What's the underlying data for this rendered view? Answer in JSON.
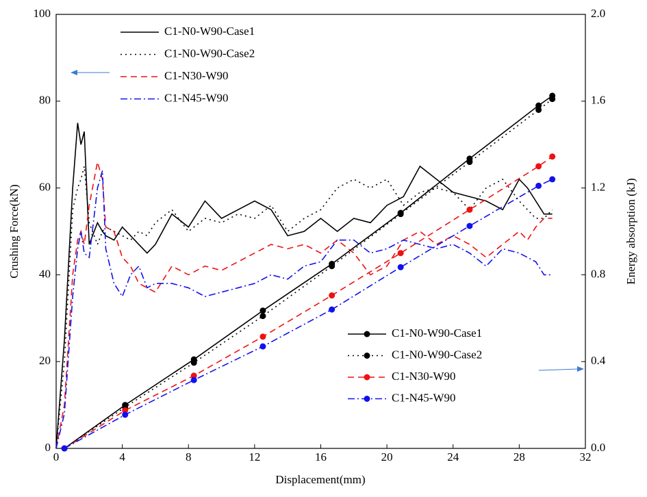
{
  "chart_data": {
    "type": "line",
    "xlabel": "Displacement(mm)",
    "ylabel": "Crushing Force(kN)",
    "y2label": "Energy absorption (kJ)",
    "xlim": [
      0,
      32
    ],
    "xticks": [
      0,
      4,
      8,
      12,
      16,
      20,
      24,
      28,
      32
    ],
    "ylim": [
      0,
      100
    ],
    "yticks": [
      0,
      20,
      40,
      60,
      80,
      100
    ],
    "y2lim": [
      0,
      2
    ],
    "y2ticks": [
      {
        "value": 0,
        "label": "0.0"
      },
      0.4,
      0.8,
      1.2,
      1.6,
      {
        "value": 2,
        "label": "2.0"
      }
    ],
    "series": [
      {
        "name": "C1-N0-W90-Case1",
        "color": "#000000",
        "dash": "solid",
        "x": [
          0,
          0.5,
          1,
          1.3,
          1.5,
          1.7,
          2,
          2.5,
          2.8,
          3,
          3.5,
          4,
          4.5,
          5,
          5.5,
          6,
          7,
          8,
          9,
          10,
          11,
          12,
          13,
          14,
          15,
          16,
          17,
          18,
          19,
          20,
          21,
          22,
          23,
          24,
          25,
          26,
          27,
          28,
          28.5,
          29,
          29.5,
          30
        ],
        "values": [
          0,
          25,
          60,
          75,
          70,
          73,
          47,
          52,
          50,
          49,
          48,
          51,
          49,
          47,
          45,
          47,
          54,
          51,
          57,
          53,
          55,
          57,
          55,
          49,
          50,
          53,
          50,
          53,
          52,
          56,
          58,
          65,
          62,
          59,
          58,
          57,
          55,
          62,
          60,
          57,
          54,
          54
        ]
      },
      {
        "name": "C1-N0-W90-Case2",
        "color": "#000000",
        "dash": "dotted",
        "x": [
          0,
          0.5,
          1,
          1.3,
          1.5,
          1.7,
          2,
          2.5,
          2.8,
          3,
          3.5,
          4,
          4.5,
          5,
          5.5,
          6,
          7,
          8,
          9,
          10,
          11,
          12,
          13,
          14,
          15,
          16,
          17,
          18,
          19,
          20,
          21,
          22,
          23,
          24,
          25,
          26,
          27,
          28,
          28.5,
          29,
          29.5,
          30
        ],
        "values": [
          0,
          20,
          55,
          60,
          62,
          65,
          52,
          47,
          50,
          51,
          50,
          49,
          48,
          50,
          49,
          52,
          55,
          50,
          53,
          52,
          54,
          53,
          56,
          50,
          53,
          55,
          60,
          62,
          60,
          62,
          56,
          59,
          60,
          59,
          55,
          60,
          62,
          57,
          55,
          53,
          53,
          55
        ]
      },
      {
        "name": "C1-N30-W90",
        "color": "#ee1111",
        "dash": "dashed",
        "x": [
          0,
          0.5,
          1,
          1.3,
          1.5,
          1.7,
          2,
          2.5,
          2.8,
          3,
          3.5,
          4,
          4.5,
          5,
          5.5,
          6,
          7,
          8,
          9,
          10,
          11,
          12,
          13,
          14,
          15,
          16,
          17,
          18,
          19,
          20,
          21,
          22,
          23,
          24,
          25,
          26,
          27,
          28,
          28.5,
          29,
          29.5,
          30
        ],
        "values": [
          0,
          10,
          40,
          48,
          50,
          47,
          56,
          66,
          62,
          51,
          50,
          44,
          42,
          38,
          37,
          36,
          42,
          40,
          42,
          41,
          43,
          45,
          47,
          46,
          47,
          45,
          48,
          45,
          40,
          42,
          48,
          50,
          47,
          49,
          47,
          44,
          47,
          50,
          48,
          51,
          53,
          53
        ]
      },
      {
        "name": "C1-N45-W90",
        "color": "#1111ee",
        "dash": "dashdot",
        "x": [
          0,
          0.5,
          1,
          1.3,
          1.5,
          1.7,
          2,
          2.5,
          2.8,
          3,
          3.5,
          4,
          4.5,
          5,
          5.5,
          6,
          7,
          8,
          9,
          10,
          11,
          12,
          13,
          14,
          15,
          16,
          17,
          18,
          19,
          20,
          21,
          22,
          23,
          24,
          25,
          26,
          27,
          28,
          28.5,
          29,
          29.5,
          30
        ],
        "values": [
          0,
          8,
          35,
          46,
          50,
          45,
          44,
          60,
          64,
          46,
          38,
          35,
          40,
          42,
          37,
          38,
          38,
          37,
          35,
          36,
          37,
          38,
          40,
          39,
          42,
          43,
          48,
          48,
          45,
          46,
          48,
          47,
          46,
          47,
          45,
          42,
          46,
          45,
          44,
          43,
          40,
          40
        ]
      },
      {
        "name": "C1-N0-W90-Case1",
        "color": "#000000",
        "dash": "solid",
        "axis": "y2",
        "marker": "circle",
        "x": [
          0.5,
          4.17,
          8.33,
          12.5,
          16.67,
          20.83,
          25,
          29.17,
          30
        ],
        "values": [
          0,
          0.2,
          0.41,
          0.635,
          0.85,
          1.085,
          1.335,
          1.58,
          1.625
        ]
      },
      {
        "name": "C1-N0-W90-Case2",
        "color": "#000000",
        "dash": "dotted",
        "axis": "y2",
        "marker": "circle",
        "x": [
          0.5,
          4.17,
          8.33,
          12.5,
          16.67,
          20.83,
          25,
          29.17,
          30
        ],
        "values": [
          0,
          0.19,
          0.395,
          0.61,
          0.84,
          1.08,
          1.32,
          1.56,
          1.61
        ]
      },
      {
        "name": "C1-N30-W90",
        "color": "#ee1111",
        "dash": "dashed",
        "axis": "y2",
        "marker": "circle",
        "x": [
          0.5,
          4.17,
          8.33,
          12.5,
          16.67,
          20.83,
          25,
          29.17,
          30
        ],
        "values": [
          0,
          0.175,
          0.335,
          0.515,
          0.705,
          0.9,
          1.1,
          1.3,
          1.345
        ]
      },
      {
        "name": "C1-N45-W90",
        "color": "#1111ee",
        "dash": "dashdot",
        "axis": "y2",
        "marker": "circle",
        "x": [
          0.5,
          4.17,
          8.33,
          12.5,
          16.67,
          20.83,
          25,
          29.17,
          30
        ],
        "values": [
          0,
          0.155,
          0.315,
          0.47,
          0.64,
          0.835,
          1.025,
          1.21,
          1.24
        ]
      }
    ]
  }
}
